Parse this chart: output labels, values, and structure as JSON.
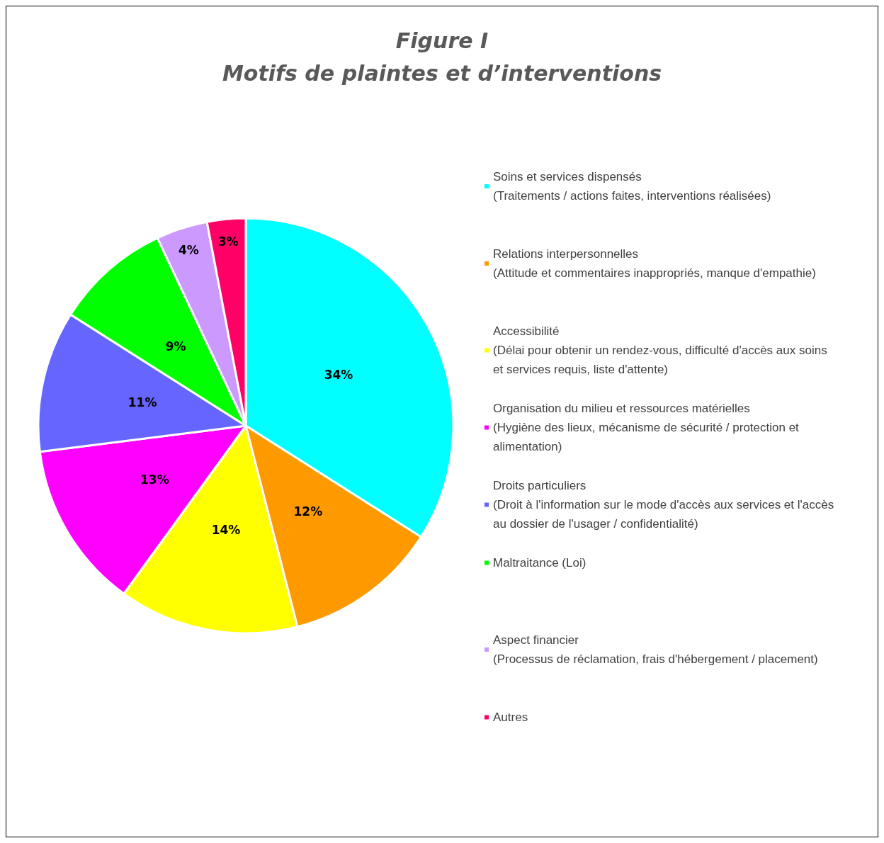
{
  "chart_data": {
    "type": "pie",
    "title": "Figure I",
    "subtitle": "Motifs de plaintes et d’interventions",
    "categories": [
      "Soins et services dispensés\n(Traitements / actions faites, interventions réalisées)",
      "Relations interpersonnelles\n(Attitude et commentaires inappropriés, manque d'empathie)",
      "Accessibilité\n(Délai pour obtenir un rendez-vous, difficulté d'accès aux soins\net services requis, liste d'attente)",
      "Organisation du milieu et ressources matérielles\n(Hygiène des lieux, mécanisme de sécurité / protection et\nalimentation)",
      "Droits particuliers\n(Droit à l'information sur le mode d'accès aux services et l'accès\nau dossier de l'usager / confidentialité)",
      "Maltraitance (Loi)",
      "Aspect financier\n(Processus de réclamation, frais d'hébergement / placement)",
      "Autres"
    ],
    "values": [
      34,
      12,
      14,
      13,
      11,
      9,
      4,
      3
    ],
    "colors": [
      "#00ffff",
      "#ff9900",
      "#ffff00",
      "#ff00ff",
      "#6666ff",
      "#00ff00",
      "#cc99ff",
      "#ff0066"
    ],
    "value_labels": [
      "34%",
      "12%",
      "14%",
      "13%",
      "11%",
      "9%",
      "4%",
      "3%"
    ],
    "legend": "right"
  }
}
